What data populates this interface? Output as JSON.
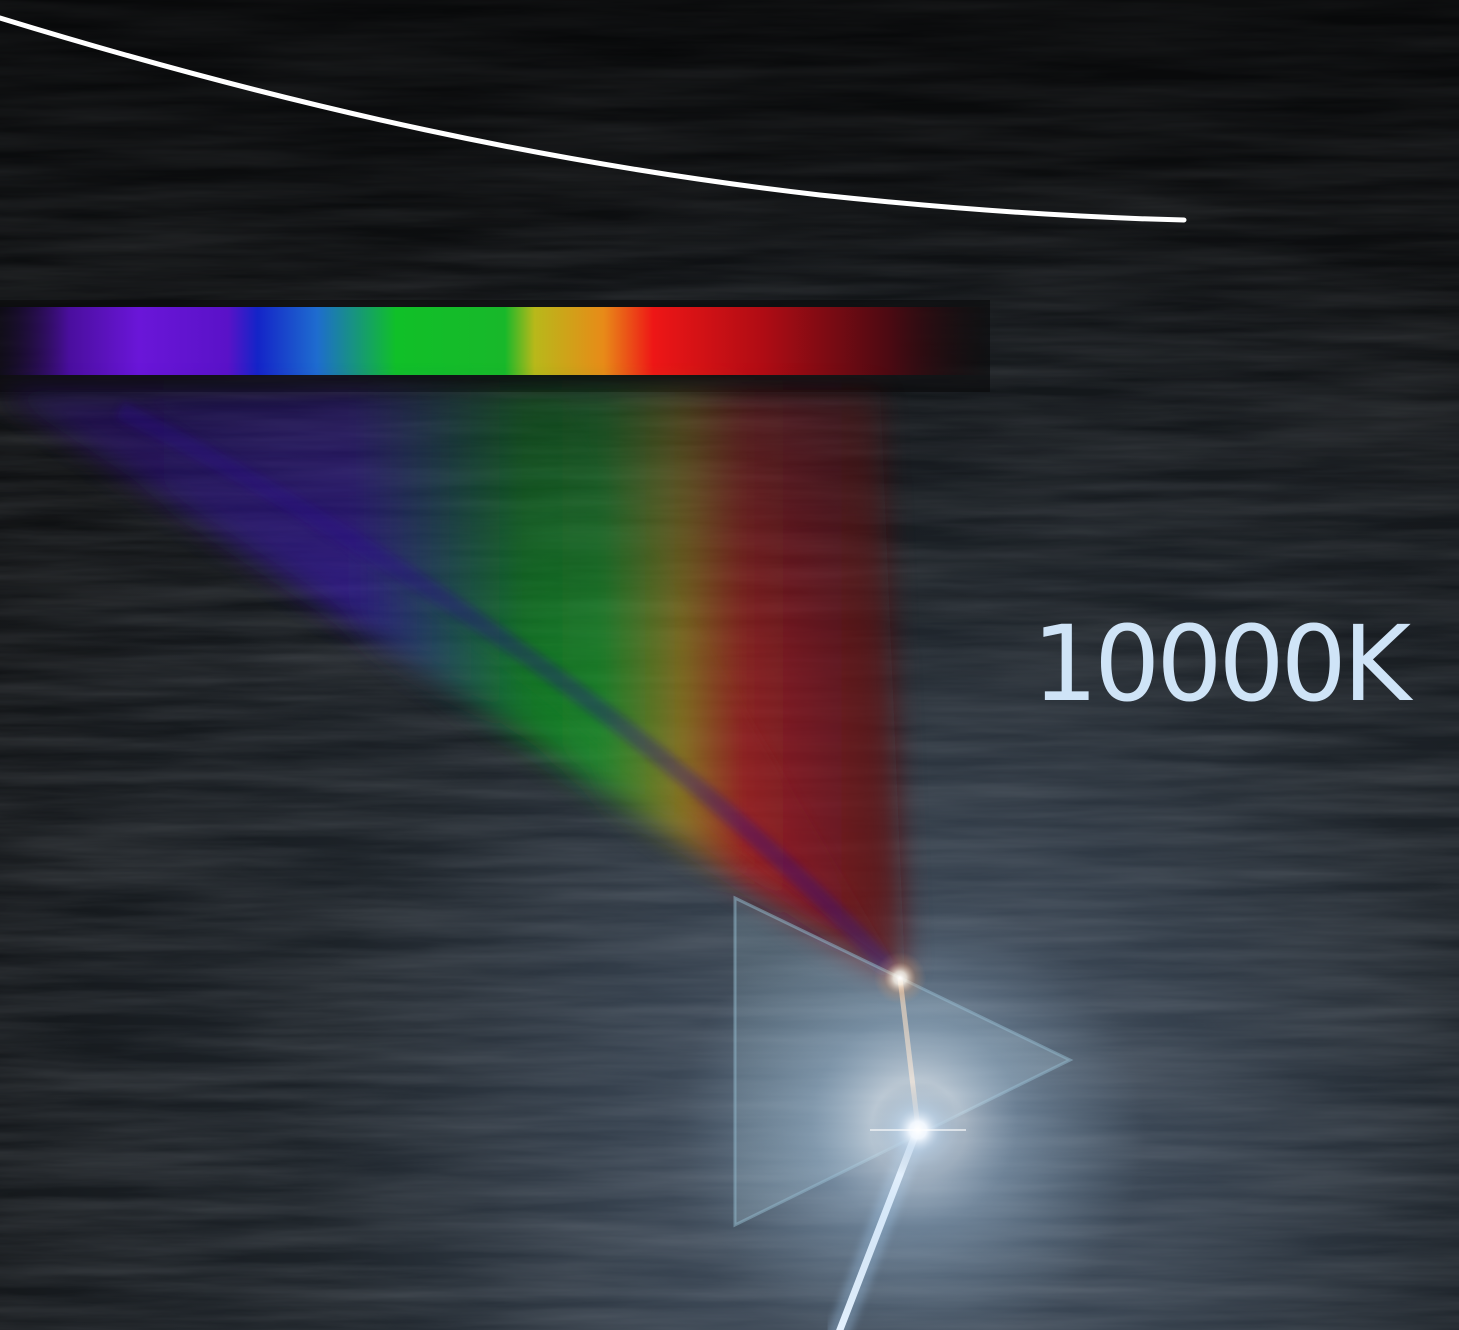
{
  "temperature_label": "10000K",
  "colors": {
    "background": "#131518",
    "curve": "#ffffff",
    "label": "#cfe4f7",
    "prism": "#8fb7c8",
    "beam": "#dcefff"
  },
  "spectrum_colors": [
    "#4a0e9e",
    "#6a16d8",
    "#1424c8",
    "#1e6ccf",
    "#10c028",
    "#b8b81a",
    "#e88a18",
    "#ee1616",
    "#6a0a14"
  ]
}
